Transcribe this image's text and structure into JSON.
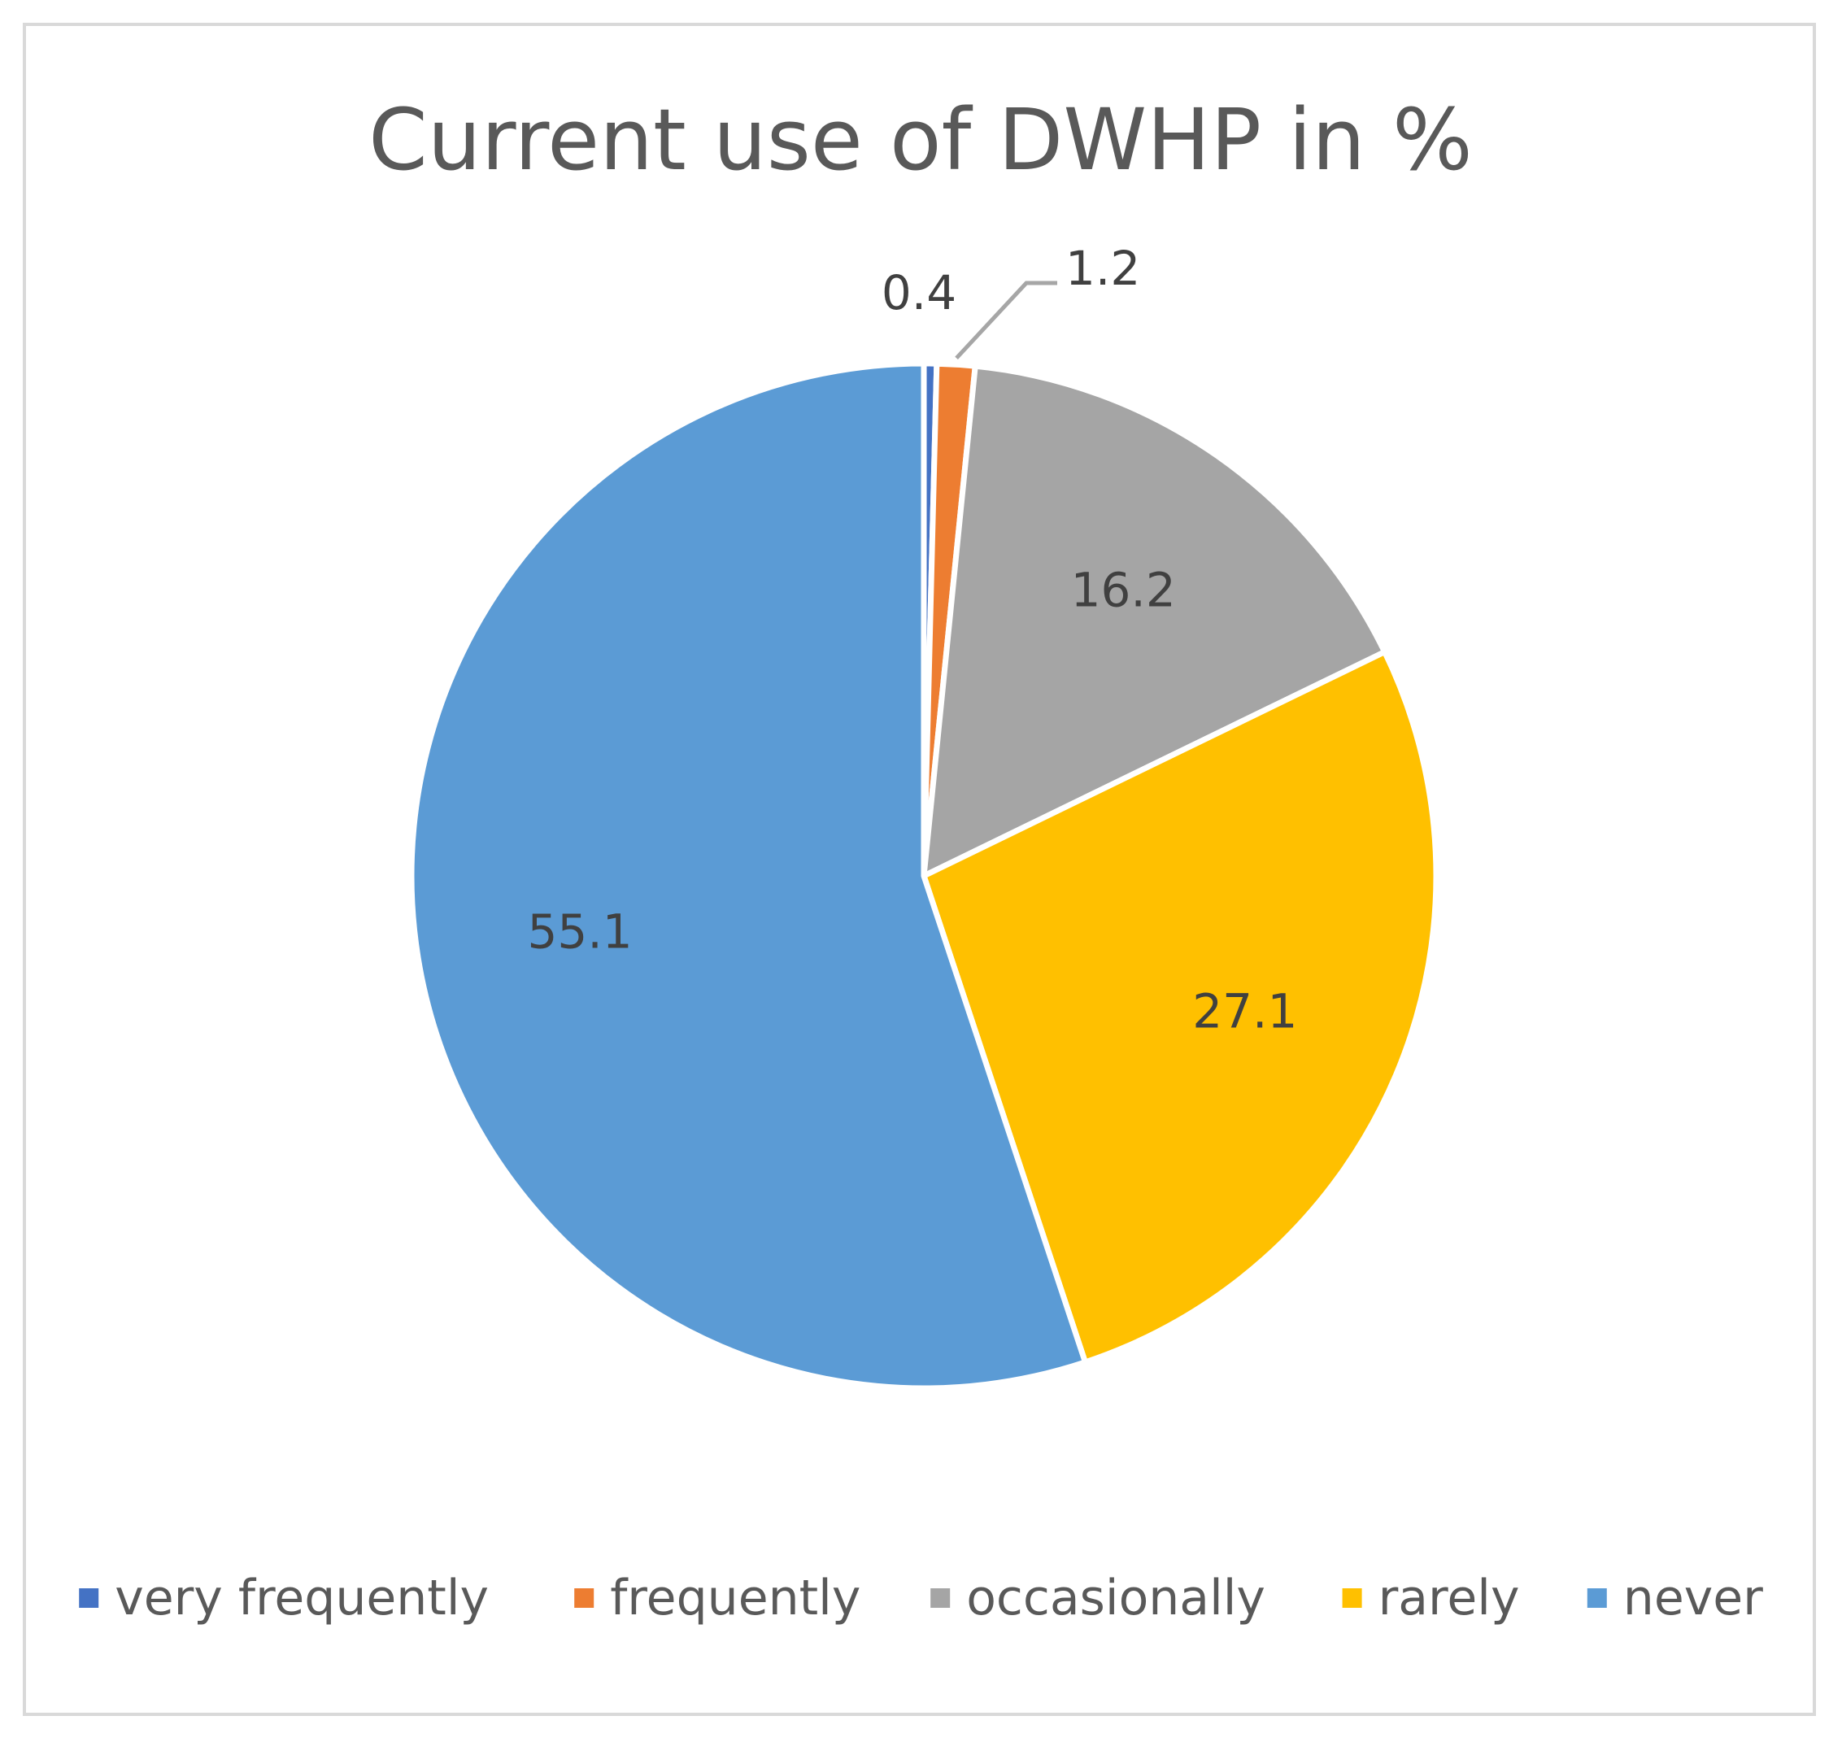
{
  "chart_data": {
    "type": "pie",
    "title": "Current use of DWHP in %",
    "categories": [
      "very frequently",
      "frequently",
      "occasionally",
      "rarely",
      "never"
    ],
    "values": [
      0.4,
      1.2,
      16.2,
      27.1,
      55.1
    ],
    "value_labels": [
      "0.4",
      "1.2",
      "16.2",
      "27.1",
      "55.1"
    ],
    "colors": [
      "#4472c4",
      "#ed7d31",
      "#a5a5a5",
      "#ffc000",
      "#5b9bd5"
    ],
    "start_angle": "12 o'clock",
    "direction": "clockwise",
    "legend_position": "bottom",
    "label_text_color": "#404040",
    "leader_line_color": "#a6a6a6"
  }
}
